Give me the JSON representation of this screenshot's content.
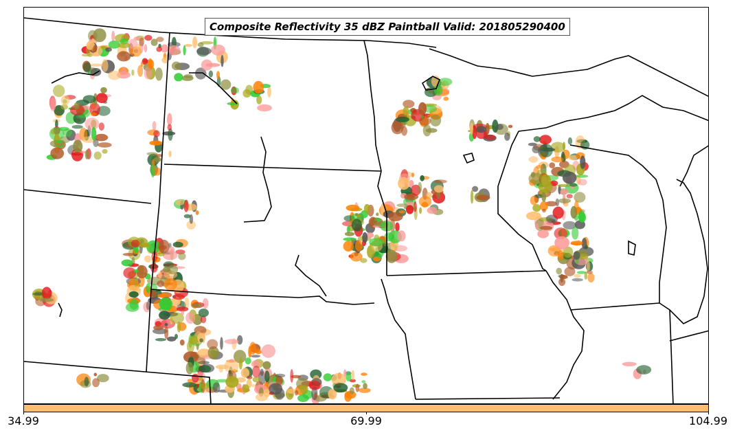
{
  "title": "Composite Reflectivity 35 dBZ Paintball Valid: 201805290400",
  "colorbar": {
    "color": "#fdbf6f",
    "ticks": [
      "34.99",
      "69.99",
      "104.99"
    ]
  },
  "map": {
    "boundary_color": "#000000",
    "member_colors": [
      "#e31a1c",
      "#ff7f00",
      "#33cc33",
      "#b15928",
      "#fb9a99",
      "#fdbf6f",
      "#a6a61a",
      "#1f5f2f",
      "#8c8c3c",
      "#555555"
    ]
  }
}
